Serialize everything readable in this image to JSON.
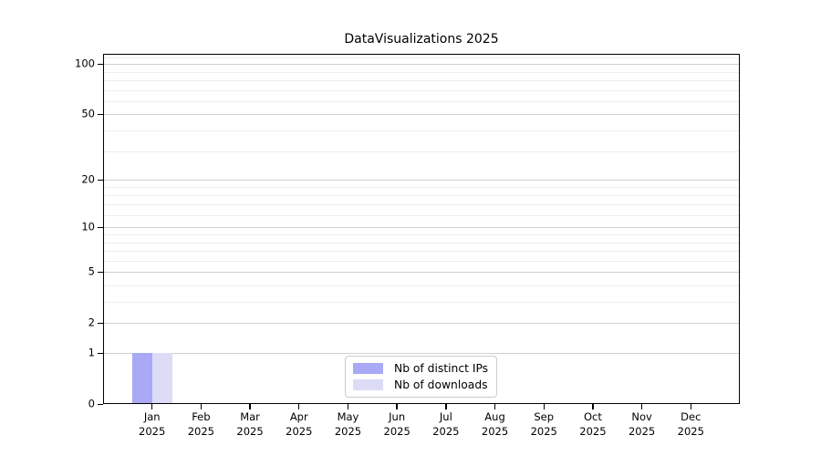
{
  "chart_data": {
    "type": "bar",
    "title": "DataVisualizations 2025",
    "year_label": "2025",
    "categories": [
      "Jan",
      "Feb",
      "Mar",
      "Apr",
      "May",
      "Jun",
      "Jul",
      "Aug",
      "Sep",
      "Oct",
      "Nov",
      "Dec"
    ],
    "series": [
      {
        "name": "Nb of distinct IPs",
        "color": "#a9a9f5",
        "values": [
          1,
          0,
          0,
          0,
          0,
          0,
          0,
          0,
          0,
          0,
          0,
          0
        ]
      },
      {
        "name": "Nb of downloads",
        "color": "#dcdcf7",
        "values": [
          1,
          0,
          0,
          0,
          0,
          0,
          0,
          0,
          0,
          0,
          0,
          0
        ]
      }
    ],
    "y_scale": "symlog",
    "y_ticks": [
      0,
      1,
      2,
      5,
      10,
      20,
      50,
      100
    ],
    "y_minor_ticks": [
      3,
      4,
      6,
      7,
      8,
      9,
      12,
      14,
      16,
      18,
      30,
      40,
      60,
      70,
      80,
      90,
      110
    ],
    "ylim": [
      0,
      115
    ],
    "grid": true,
    "legend_position": "bottom-center",
    "colors": {
      "background": "#ffffff",
      "axis": "#000000",
      "text": "#000000",
      "grid_major": "#d0d0d0",
      "grid_minor": "#ededed",
      "legend_border": "#cccccc"
    }
  }
}
